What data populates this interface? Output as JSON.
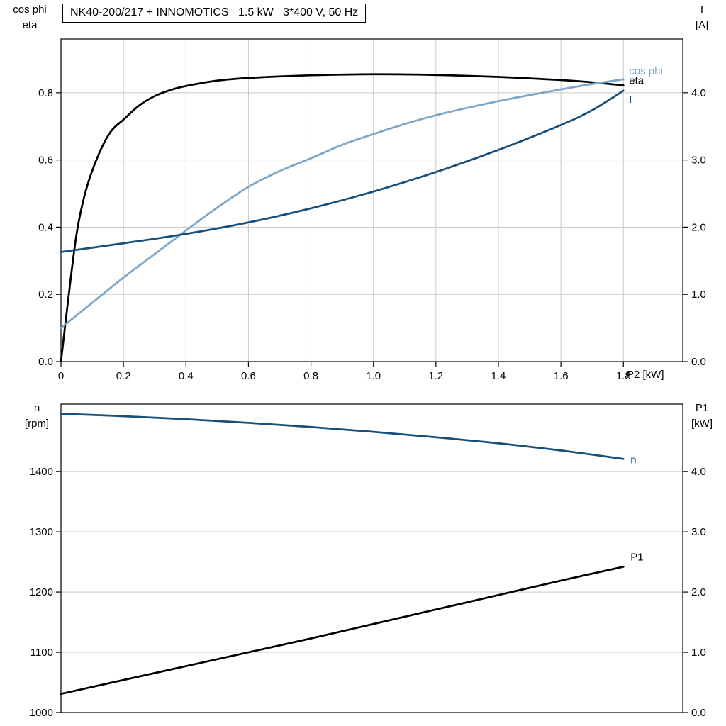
{
  "style": {
    "background": "#ffffff",
    "grid_color": "#c9c9c9",
    "axis_color": "#000000",
    "eta_p1_color": "#000000",
    "cosphi_color": "#7da6c8",
    "current_n_color": "#174f7a"
  },
  "chart_data": [
    {
      "name": "motor-electrical-chart",
      "type": "line",
      "title": "NK40-200/217 + INNOMOTICS   1.5 kW   3*400 V, 50 Hz",
      "y_left_title": [
        "cos phi",
        "eta"
      ],
      "y_right_title": [
        "I",
        "[A]"
      ],
      "x_title": "P2 [kW]",
      "grid_vertical": true,
      "x_axis": {
        "min": 0,
        "max": 1.99,
        "ticks": [
          {
            "v": 0,
            "label": "0"
          },
          {
            "v": 0.2,
            "label": "0.2"
          },
          {
            "v": 0.4,
            "label": "0.4"
          },
          {
            "v": 0.6,
            "label": "0.6"
          },
          {
            "v": 0.8,
            "label": "0.8"
          },
          {
            "v": 1.0,
            "label": "1.0"
          },
          {
            "v": 1.2,
            "label": "1.2"
          },
          {
            "v": 1.4,
            "label": "1.4"
          },
          {
            "v": 1.6,
            "label": "1.6"
          },
          {
            "v": 1.8,
            "label": "1.8"
          }
        ]
      },
      "y_left_axis": {
        "min": 0,
        "max": 0.96,
        "ticks": [
          {
            "v": 0,
            "label": "0.0"
          },
          {
            "v": 0.2,
            "label": "0.2"
          },
          {
            "v": 0.4,
            "label": "0.4"
          },
          {
            "v": 0.6,
            "label": "0.6"
          },
          {
            "v": 0.8,
            "label": "0.8"
          }
        ]
      },
      "y_right_axis": {
        "min": 0,
        "max": 4.8,
        "ticks": [
          {
            "v": 0,
            "label": "0.0"
          },
          {
            "v": 1,
            "label": "1.0"
          },
          {
            "v": 2,
            "label": "2.0"
          },
          {
            "v": 3,
            "label": "3.0"
          },
          {
            "v": 4,
            "label": "4.0"
          }
        ]
      },
      "series": [
        {
          "name": "eta",
          "label": "eta",
          "color": "#000000",
          "axis": "left",
          "label_dx": 8,
          "label_dy": -2,
          "x": [
            0,
            0.02,
            0.05,
            0.08,
            0.12,
            0.16,
            0.2,
            0.25,
            0.3,
            0.35,
            0.4,
            0.5,
            0.6,
            0.8,
            1.0,
            1.2,
            1.4,
            1.6,
            1.7,
            1.8
          ],
          "y": [
            0,
            0.16,
            0.38,
            0.51,
            0.615,
            0.685,
            0.72,
            0.762,
            0.79,
            0.808,
            0.82,
            0.836,
            0.844,
            0.852,
            0.855,
            0.853,
            0.847,
            0.838,
            0.831,
            0.822
          ]
        },
        {
          "name": "cos-phi",
          "label": "cos phi",
          "color": "#7da6c8",
          "axis": "left",
          "label_dx": 8,
          "label_dy": -7,
          "x": [
            0,
            0.1,
            0.2,
            0.3,
            0.4,
            0.5,
            0.6,
            0.7,
            0.8,
            0.9,
            1.0,
            1.1,
            1.2,
            1.3,
            1.4,
            1.5,
            1.6,
            1.7,
            1.8
          ],
          "y": [
            0.1,
            0.175,
            0.25,
            0.32,
            0.39,
            0.458,
            0.52,
            0.567,
            0.605,
            0.645,
            0.677,
            0.707,
            0.733,
            0.755,
            0.775,
            0.793,
            0.81,
            0.826,
            0.84
          ]
        },
        {
          "name": "current-I",
          "label": "I",
          "color": "#174f7a",
          "axis": "right",
          "label_dx": 8,
          "label_dy": 17,
          "x": [
            0,
            0.2,
            0.4,
            0.6,
            0.8,
            1.0,
            1.2,
            1.4,
            1.6,
            1.7,
            1.8
          ],
          "y": [
            1.63,
            1.76,
            1.9,
            2.07,
            2.28,
            2.53,
            2.82,
            3.15,
            3.52,
            3.74,
            4.03
          ]
        }
      ]
    },
    {
      "name": "motor-speed-power-chart",
      "type": "line",
      "title": "",
      "y_left_title": [
        "n",
        "[rpm]"
      ],
      "y_right_title": [
        "P1",
        "[kW]"
      ],
      "x_title": "",
      "grid_vertical": false,
      "x_axis": {
        "min": 0,
        "max": 1.99,
        "ticks": []
      },
      "y_left_axis": {
        "min": 1000,
        "max": 1512,
        "ticks": [
          {
            "v": 1000,
            "label": "1000"
          },
          {
            "v": 1100,
            "label": "1100"
          },
          {
            "v": 1200,
            "label": "1200"
          },
          {
            "v": 1300,
            "label": "1300"
          },
          {
            "v": 1400,
            "label": "1400"
          }
        ]
      },
      "y_right_axis": {
        "min": 0,
        "max": 5.12,
        "ticks": [
          {
            "v": 0,
            "label": "0.0"
          },
          {
            "v": 1,
            "label": "1.0"
          },
          {
            "v": 2,
            "label": "2.0"
          },
          {
            "v": 3,
            "label": "3.0"
          },
          {
            "v": 4,
            "label": "4.0"
          }
        ]
      },
      "series": [
        {
          "name": "speed-n",
          "label": "n",
          "color": "#174f7a",
          "axis": "left",
          "label_dx": 10,
          "label_dy": 6,
          "x": [
            0,
            0.2,
            0.4,
            0.6,
            0.8,
            1.0,
            1.2,
            1.4,
            1.6,
            1.8
          ],
          "y": [
            1496,
            1492,
            1487,
            1481,
            1474,
            1466,
            1457,
            1447,
            1435,
            1421
          ]
        },
        {
          "name": "input-power-P1",
          "label": "P1",
          "color": "#000000",
          "axis": "right",
          "label_dx": 10,
          "label_dy": -9,
          "x": [
            0,
            0.2,
            0.4,
            0.6,
            0.8,
            1.0,
            1.2,
            1.4,
            1.6,
            1.8
          ],
          "y": [
            0.31,
            0.54,
            0.77,
            1.0,
            1.23,
            1.47,
            1.71,
            1.95,
            2.19,
            2.42
          ]
        }
      ]
    }
  ]
}
